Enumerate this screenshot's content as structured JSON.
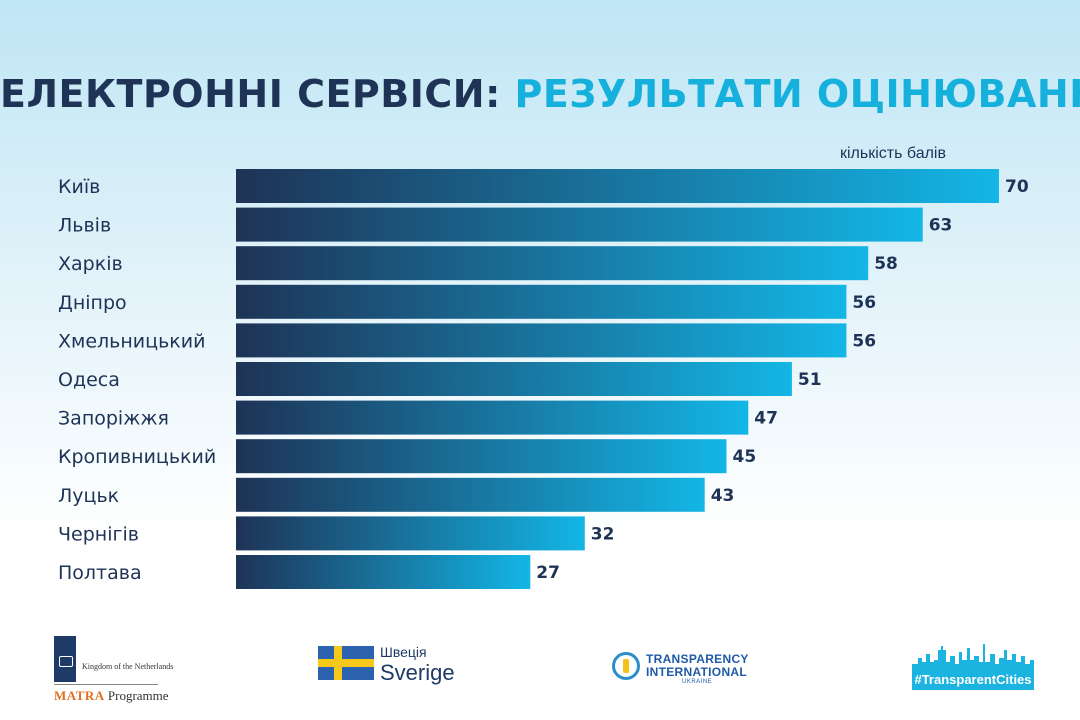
{
  "title": {
    "part1": "ЕЛЕКТРОННІ СЕРВІСИ:",
    "part2": "РЕЗУЛЬТАТИ ОЦІНЮВАННЯ"
  },
  "colors": {
    "title_dark": "#1e3356",
    "title_accent": "#16b0dc",
    "bar_start": "#1e3356",
    "bar_end": "#13b6e6"
  },
  "chart_data": {
    "type": "bar",
    "orientation": "horizontal",
    "unit_label": "кількість балів",
    "categories": [
      "Київ",
      "Львів",
      "Харків",
      "Дніпро",
      "Хмельницький",
      "Одеса",
      "Запоріжжя",
      "Кропивницький",
      "Луцьк",
      "Чернігів",
      "Полтава"
    ],
    "values": [
      70,
      63,
      58,
      56,
      56,
      51,
      47,
      45,
      43,
      32,
      27
    ],
    "xlim": [
      0,
      70
    ],
    "grid": false,
    "legend": false,
    "data_labels": true
  },
  "logos": {
    "netherlands": {
      "kingdom": "Kingdom of the Netherlands",
      "matra": "MATRA",
      "programme": "Programme"
    },
    "sweden": {
      "ua": "Швеція",
      "sv": "Sverige"
    },
    "ti": {
      "line1": "TRANSPARENCY",
      "line2": "INTERNATIONAL",
      "line3": "UKRAINE"
    },
    "tc": {
      "hashtag": "#TransparentCities"
    }
  }
}
